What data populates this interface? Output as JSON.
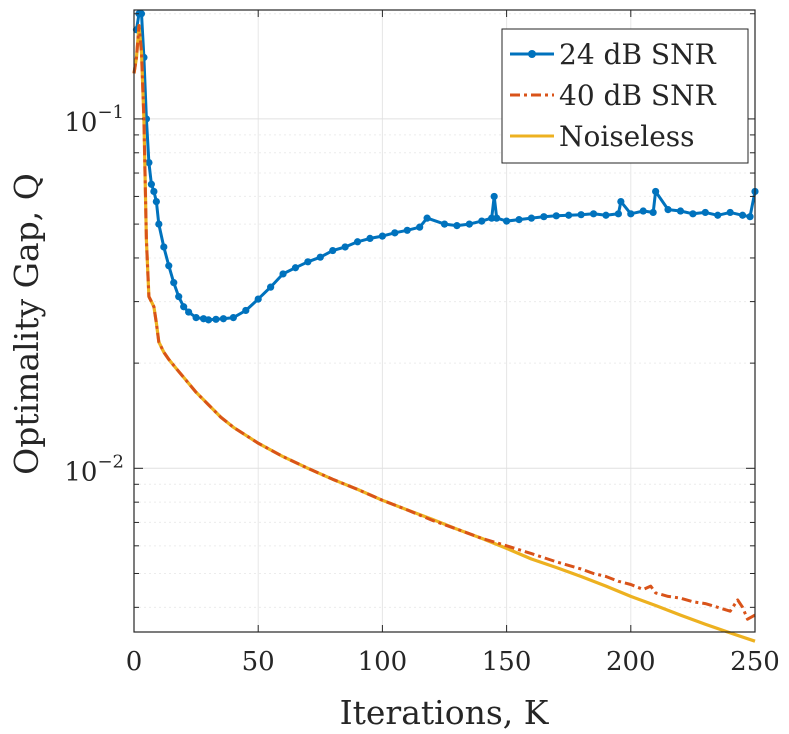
{
  "chart_data": {
    "type": "line",
    "title": "",
    "xlabel": "Iterations, K",
    "ylabel": "Optimality Gap, Q",
    "xlim": [
      0,
      250
    ],
    "ylim": [
      0.0034,
      0.205
    ],
    "yscale": "log",
    "grid": true,
    "legend_position": "top-right",
    "x_ticks": [
      {
        "value": 0,
        "label": "0"
      },
      {
        "value": 50,
        "label": "50"
      },
      {
        "value": 100,
        "label": "100"
      },
      {
        "value": 150,
        "label": "150"
      },
      {
        "value": 200,
        "label": "200"
      },
      {
        "value": 250,
        "label": "250"
      }
    ],
    "y_ticks": [
      {
        "value": 0.1,
        "base": "10",
        "exponent": "−1"
      },
      {
        "value": 0.01,
        "base": "10",
        "exponent": "−2"
      }
    ],
    "series": [
      {
        "name": "24 dB SNR",
        "color": "#0072BD",
        "style": "solid-marker",
        "x": [
          1,
          2,
          3,
          4,
          5,
          6,
          7,
          8,
          9,
          10,
          12,
          14,
          16,
          18,
          20,
          22,
          25,
          28,
          30,
          33,
          36,
          40,
          45,
          50,
          55,
          60,
          65,
          70,
          75,
          80,
          85,
          90,
          95,
          100,
          105,
          110,
          115,
          118,
          125,
          130,
          135,
          140,
          144,
          145,
          146,
          150,
          155,
          160,
          165,
          170,
          175,
          180,
          185,
          190,
          195,
          196,
          200,
          205,
          209,
          210,
          215,
          220,
          225,
          230,
          235,
          240,
          245,
          248,
          250
        ],
        "values": [
          0.18,
          0.2,
          0.2,
          0.15,
          0.1,
          0.075,
          0.065,
          0.062,
          0.058,
          0.05,
          0.043,
          0.038,
          0.034,
          0.031,
          0.029,
          0.028,
          0.027,
          0.0268,
          0.0266,
          0.0267,
          0.0268,
          0.027,
          0.0283,
          0.0305,
          0.033,
          0.036,
          0.0375,
          0.039,
          0.0402,
          0.042,
          0.043,
          0.0445,
          0.0455,
          0.0462,
          0.0472,
          0.048,
          0.049,
          0.052,
          0.05,
          0.0495,
          0.05,
          0.051,
          0.052,
          0.06,
          0.052,
          0.051,
          0.0515,
          0.052,
          0.0525,
          0.0528,
          0.053,
          0.0532,
          0.0535,
          0.053,
          0.0535,
          0.058,
          0.0535,
          0.0545,
          0.054,
          0.062,
          0.055,
          0.0545,
          0.0535,
          0.054,
          0.053,
          0.054,
          0.053,
          0.0525,
          0.062
        ]
      },
      {
        "name": "40 dB SNR",
        "color": "#D95319",
        "style": "dashdot",
        "x": [
          0,
          1,
          2,
          3,
          4,
          5,
          6,
          7,
          8,
          9,
          10,
          12,
          14,
          17,
          20,
          25,
          30,
          35,
          40,
          50,
          60,
          70,
          80,
          90,
          100,
          110,
          120,
          130,
          140,
          150,
          160,
          170,
          180,
          185,
          190,
          195,
          200,
          205,
          208,
          210,
          215,
          220,
          225,
          230,
          235,
          240,
          243,
          245,
          247,
          250
        ],
        "values": [
          0.135,
          0.15,
          0.185,
          0.155,
          0.1,
          0.045,
          0.031,
          0.03,
          0.029,
          0.026,
          0.023,
          0.0215,
          0.0205,
          0.0193,
          0.0182,
          0.0165,
          0.0152,
          0.014,
          0.0131,
          0.0118,
          0.0108,
          0.01,
          0.0093,
          0.0087,
          0.0081,
          0.0076,
          0.0071,
          0.0067,
          0.0063,
          0.006,
          0.0057,
          0.0054,
          0.00515,
          0.005,
          0.0049,
          0.00475,
          0.00465,
          0.0045,
          0.0046,
          0.0044,
          0.0043,
          0.00425,
          0.00415,
          0.0041,
          0.004,
          0.0039,
          0.0042,
          0.004,
          0.0037,
          0.0038
        ]
      },
      {
        "name": "Noiseless",
        "color": "#EDB120",
        "style": "solid",
        "x": [
          0,
          1,
          2,
          3,
          4,
          5,
          6,
          7,
          8,
          9,
          10,
          12,
          14,
          17,
          20,
          25,
          30,
          35,
          40,
          50,
          60,
          70,
          80,
          90,
          100,
          110,
          120,
          130,
          140,
          150,
          160,
          170,
          180,
          190,
          200,
          210,
          220,
          230,
          240,
          250
        ],
        "values": [
          0.135,
          0.15,
          0.185,
          0.155,
          0.1,
          0.045,
          0.031,
          0.03,
          0.029,
          0.026,
          0.023,
          0.0215,
          0.0205,
          0.0193,
          0.0182,
          0.0165,
          0.0152,
          0.014,
          0.0131,
          0.0118,
          0.0108,
          0.01,
          0.0093,
          0.0087,
          0.0081,
          0.0076,
          0.00715,
          0.0067,
          0.0063,
          0.0059,
          0.0055,
          0.0052,
          0.0049,
          0.0046,
          0.0043,
          0.00405,
          0.0038,
          0.00358,
          0.00338,
          0.0032
        ]
      }
    ]
  }
}
